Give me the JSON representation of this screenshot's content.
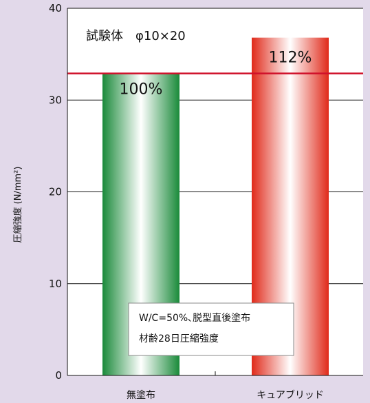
{
  "chart_data": {
    "type": "bar",
    "categories": [
      "無塗布",
      "キュアブリッド"
    ],
    "values": [
      32.9,
      36.8
    ],
    "value_labels": [
      "100%",
      "112%"
    ],
    "bar_colors": [
      "#1a8a3a",
      "#e02a1a"
    ],
    "ylabel": "圧縮強度 (N/mm²)",
    "ylim": [
      0,
      40
    ],
    "yticks": [
      0,
      10,
      20,
      30,
      40
    ],
    "grid": true,
    "reference_line": {
      "value": 32.9,
      "color": "#d0102a"
    },
    "annotations": {
      "specimen": "試験体　φ10×20",
      "note_line1": "W/C=50%､脱型直後塗布",
      "note_line2": "材齢28日圧縮強度"
    }
  },
  "colors": {
    "background": "#e2d9ea",
    "plot_area": "#ffffff"
  }
}
